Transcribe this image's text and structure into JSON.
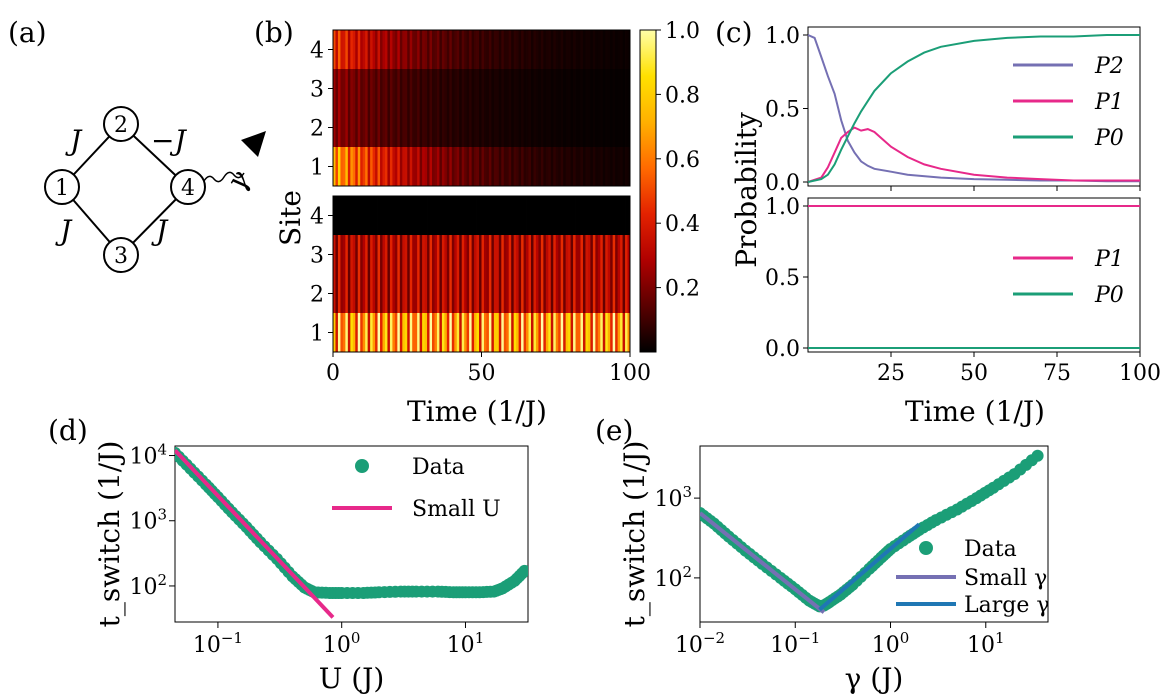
{
  "panel_labels": [
    "(a)",
    "(b)",
    "(c)",
    "(d)",
    "(e)"
  ],
  "chart_data": [
    {
      "panel": "(a)",
      "type": "diagram",
      "nodes": [
        "1",
        "2",
        "3",
        "4"
      ],
      "edges": [
        {
          "from": "1",
          "to": "2",
          "label": "J"
        },
        {
          "from": "2",
          "to": "4",
          "label": "−J"
        },
        {
          "from": "1",
          "to": "3",
          "label": "J"
        },
        {
          "from": "3",
          "to": "4",
          "label": "J"
        }
      ],
      "decay_label": "γ"
    },
    {
      "panel": "(b)",
      "type": "heatmap",
      "ylabel": "Site",
      "xlabel": "Time (1/J)",
      "x_ticks": [
        "0",
        "50",
        "100"
      ],
      "y_ticks": [
        "1",
        "2",
        "3",
        "4"
      ],
      "xlim": [
        0,
        100
      ],
      "colorbar_ticks": [
        "0.2",
        "0.4",
        "0.6",
        "0.8",
        "1.0"
      ],
      "colorbar_range": [
        0,
        1.0
      ],
      "colormap": [
        "#000000",
        "#5a0000",
        "#b00000",
        "#e32200",
        "#ff6a00",
        "#ffb000",
        "#ffe100",
        "#ffffa8"
      ],
      "top": {
        "site_initial_intensity": [
          0.9,
          0.3,
          0.3,
          0.6
        ],
        "decay_time": 30
      },
      "bottom": {
        "site_intensity": [
          1.0,
          0.45,
          0.45,
          0.0
        ],
        "oscillation_period": 2.2
      }
    },
    {
      "panel": "(c)",
      "type": "line",
      "ylabel": "Probability",
      "xlabel": "Time (1/J)",
      "x_ticks": [
        "25",
        "50",
        "75",
        "100"
      ],
      "xlim": [
        0,
        100
      ],
      "top": {
        "ylim": [
          0,
          1
        ],
        "y_ticks": [
          "0.0",
          "0.5",
          "1.0"
        ],
        "series": [
          {
            "name": "P2",
            "color": "#7570b3",
            "x": [
              0,
              2,
              4,
              6,
              8,
              10,
              12,
              14,
              16,
              18,
              20,
              25,
              30,
              40,
              50,
              60,
              70,
              80,
              90,
              100
            ],
            "y": [
              1.0,
              0.98,
              0.85,
              0.72,
              0.6,
              0.42,
              0.28,
              0.2,
              0.14,
              0.11,
              0.09,
              0.07,
              0.05,
              0.03,
              0.02,
              0.015,
              0.01,
              0.01,
              0.005,
              0.005
            ]
          },
          {
            "name": "P1",
            "color": "#e7298a",
            "x": [
              0,
              4,
              6,
              8,
              10,
              12,
              14,
              16,
              18,
              20,
              22,
              25,
              30,
              35,
              40,
              50,
              60,
              70,
              80,
              90,
              100
            ],
            "y": [
              0.0,
              0.03,
              0.1,
              0.2,
              0.3,
              0.34,
              0.37,
              0.35,
              0.36,
              0.34,
              0.3,
              0.24,
              0.17,
              0.12,
              0.09,
              0.05,
              0.03,
              0.02,
              0.01,
              0.01,
              0.01
            ]
          },
          {
            "name": "P0",
            "color": "#1b9e77",
            "x": [
              0,
              4,
              6,
              8,
              10,
              12,
              14,
              16,
              18,
              20,
              25,
              30,
              35,
              40,
              50,
              60,
              70,
              80,
              90,
              100
            ],
            "y": [
              0.0,
              0.02,
              0.05,
              0.12,
              0.22,
              0.31,
              0.4,
              0.48,
              0.55,
              0.62,
              0.74,
              0.82,
              0.88,
              0.92,
              0.96,
              0.98,
              0.99,
              0.99,
              1.0,
              1.0
            ]
          }
        ]
      },
      "bottom": {
        "ylim": [
          0,
          1
        ],
        "y_ticks": [
          "0.0",
          "0.5",
          "1.0"
        ],
        "series": [
          {
            "name": "P1",
            "color": "#e7298a",
            "x": [
              0,
              100
            ],
            "y": [
              1.0,
              1.0
            ]
          },
          {
            "name": "P0",
            "color": "#1b9e77",
            "x": [
              0,
              100
            ],
            "y": [
              0.0,
              0.0
            ]
          }
        ]
      }
    },
    {
      "panel": "(d)",
      "type": "scatter",
      "xlabel": "U (J)",
      "ylabel": "t_switch (1/J)",
      "xscale": "log",
      "yscale": "log",
      "xlim": [
        0.045,
        32
      ],
      "ylim": [
        28,
        14000
      ],
      "x_ticks": [
        {
          "v": 0.1,
          "e": "−1"
        },
        {
          "v": 1,
          "e": "0"
        },
        {
          "v": 10,
          "e": "1"
        }
      ],
      "y_ticks": [
        {
          "v": 100,
          "e": "2"
        },
        {
          "v": 1000,
          "e": "3"
        },
        {
          "v": 10000,
          "e": "4"
        }
      ],
      "legend": {
        "data": "Data",
        "fit": "Small U"
      },
      "series": [
        {
          "name": "Data",
          "color": "#1b9e77",
          "x": [
            0.045,
            0.06,
            0.08,
            0.1,
            0.13,
            0.17,
            0.22,
            0.3,
            0.4,
            0.5,
            0.6,
            0.8,
            1,
            1.5,
            2,
            3,
            4,
            6,
            8,
            10,
            13,
            17,
            20,
            25,
            30
          ],
          "y": [
            11000,
            6300,
            3600,
            2300,
            1350,
            800,
            470,
            260,
            140,
            95,
            80,
            78,
            78,
            78,
            80,
            82,
            82,
            82,
            80,
            80,
            80,
            82,
            92,
            120,
            170
          ]
        },
        {
          "name": "Small U",
          "color": "#e7298a",
          "x": [
            0.045,
            0.85
          ],
          "y": [
            12000,
            33
          ]
        }
      ]
    },
    {
      "panel": "(e)",
      "type": "scatter",
      "xlabel": "γ (J)",
      "ylabel": "t_switch (1/J)",
      "xscale": "log",
      "yscale": "log",
      "xlim": [
        0.01,
        45
      ],
      "ylim": [
        28,
        4500
      ],
      "x_ticks": [
        {
          "v": 0.01,
          "e": "−2"
        },
        {
          "v": 0.1,
          "e": "−1"
        },
        {
          "v": 1,
          "e": "0"
        },
        {
          "v": 10,
          "e": "1"
        }
      ],
      "y_ticks": [
        {
          "v": 100,
          "e": "2"
        },
        {
          "v": 1000,
          "e": "3"
        }
      ],
      "legend": {
        "data": "Data",
        "small": "Small γ",
        "large": "Large γ"
      },
      "series": [
        {
          "name": "Data",
          "color": "#1b9e77",
          "x": [
            0.01,
            0.014,
            0.02,
            0.03,
            0.045,
            0.07,
            0.1,
            0.14,
            0.18,
            0.2,
            0.23,
            0.3,
            0.4,
            0.6,
            0.8,
            1,
            1.5,
            2,
            3,
            5,
            8,
            12,
            20,
            35
          ],
          "y": [
            650,
            480,
            330,
            220,
            150,
            100,
            72,
            52,
            44,
            45,
            50,
            62,
            82,
            130,
            180,
            230,
            320,
            400,
            530,
            720,
            1000,
            1350,
            2000,
            3400
          ]
        },
        {
          "name": "Small γ",
          "color": "#7570b3",
          "x": [
            0.01,
            0.2
          ],
          "y": [
            650,
            37
          ]
        },
        {
          "name": "Large γ",
          "color": "#1f77b4",
          "x": [
            0.18,
            2
          ],
          "y": [
            40,
            470
          ]
        }
      ]
    }
  ]
}
